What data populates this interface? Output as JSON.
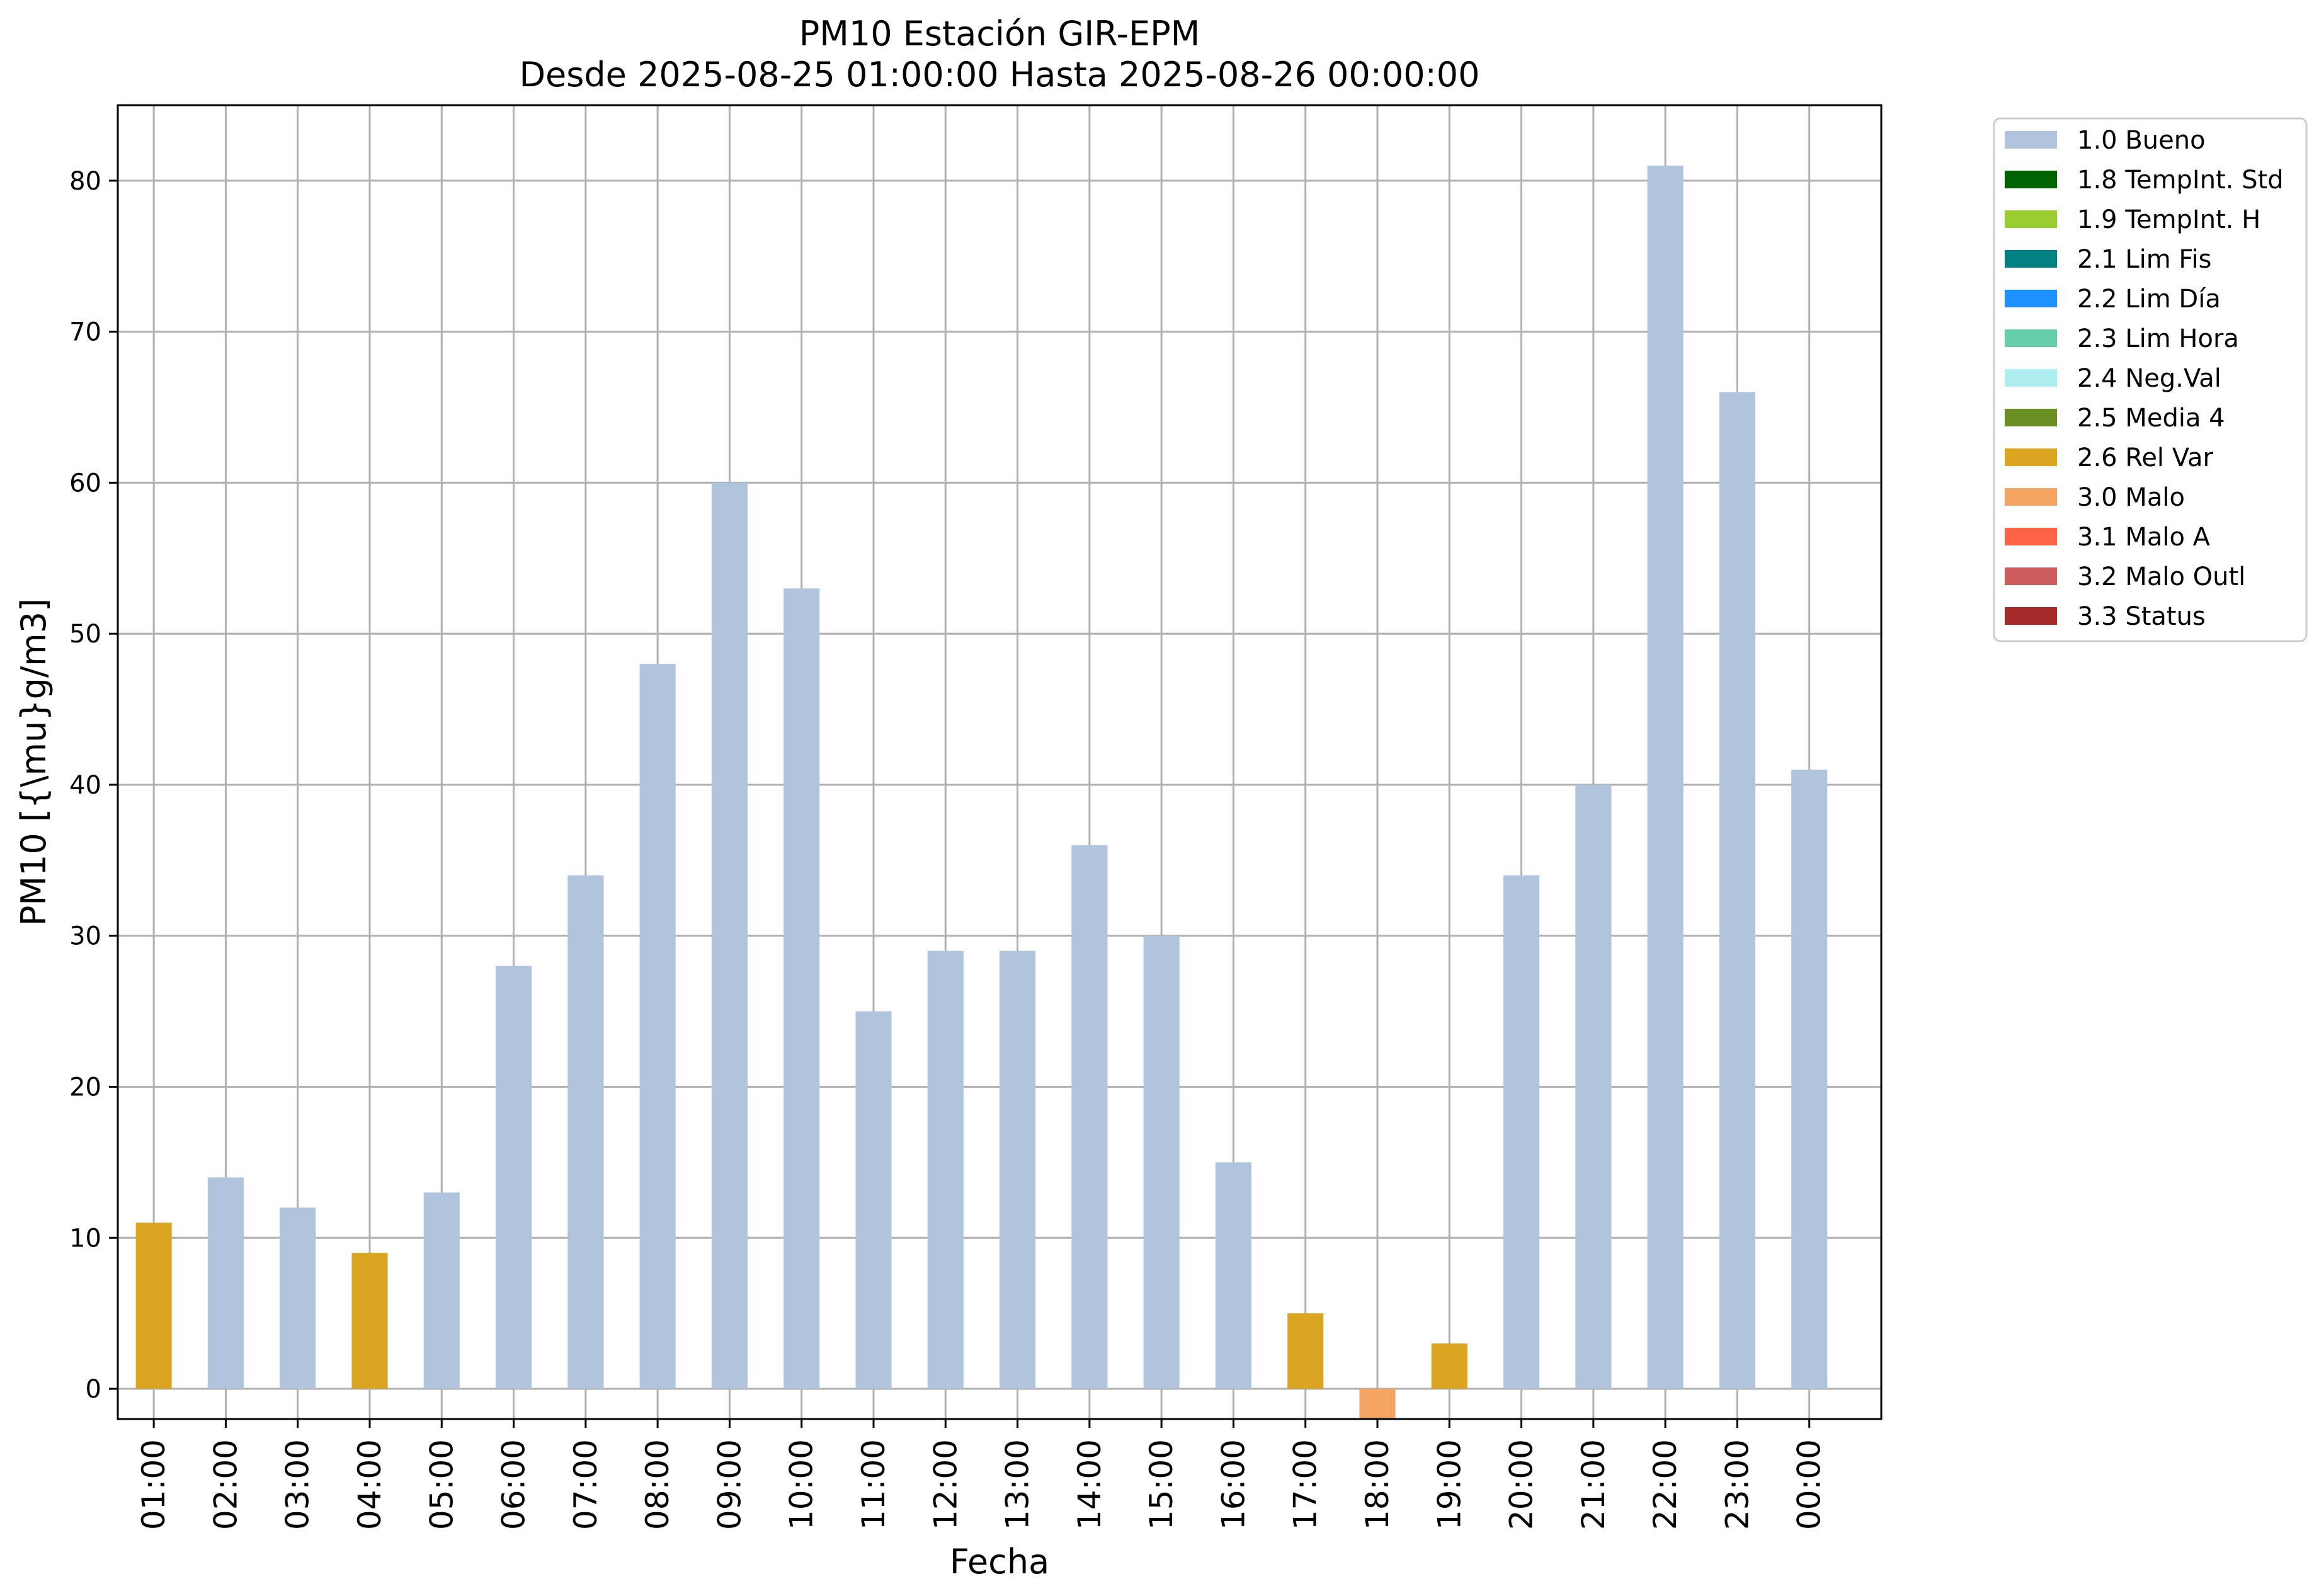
{
  "chart_data": {
    "type": "bar",
    "title": "PM10 Estación GIR-EPM",
    "subtitle": "Desde 2025-08-25 01:00:00 Hasta 2025-08-26 00:00:00",
    "xlabel": "Fecha",
    "ylabel": "PM10 [{\\mu}g/m3]",
    "ylim": [
      -2,
      85
    ],
    "yticks": [
      0,
      10,
      20,
      30,
      40,
      50,
      60,
      70,
      80
    ],
    "grid": true,
    "legend_position": "outside-top-right",
    "categories": [
      "01:00",
      "02:00",
      "03:00",
      "04:00",
      "05:00",
      "06:00",
      "07:00",
      "08:00",
      "09:00",
      "10:00",
      "11:00",
      "12:00",
      "13:00",
      "14:00",
      "15:00",
      "16:00",
      "17:00",
      "18:00",
      "19:00",
      "20:00",
      "21:00",
      "22:00",
      "23:00",
      "00:00"
    ],
    "values": [
      11,
      14,
      12,
      9,
      13,
      28,
      34,
      48,
      60,
      53,
      25,
      29,
      29,
      36,
      30,
      15,
      5,
      -2,
      3,
      34,
      40,
      81,
      66,
      41
    ],
    "flags": [
      "2.6 Rel Var",
      "1.0 Bueno",
      "1.0 Bueno",
      "2.6 Rel Var",
      "1.0 Bueno",
      "1.0 Bueno",
      "1.0 Bueno",
      "1.0 Bueno",
      "1.0 Bueno",
      "1.0 Bueno",
      "1.0 Bueno",
      "1.0 Bueno",
      "1.0 Bueno",
      "1.0 Bueno",
      "1.0 Bueno",
      "1.0 Bueno",
      "2.6 Rel Var",
      "3.0 Malo",
      "2.6 Rel Var",
      "1.0 Bueno",
      "1.0 Bueno",
      "1.0 Bueno",
      "1.0 Bueno",
      "1.0 Bueno"
    ],
    "legend": [
      {
        "label": "1.0 Bueno",
        "color": "#b0c4de"
      },
      {
        "label": "1.8 TempInt. Std",
        "color": "#006400"
      },
      {
        "label": "1.9 TempInt. H",
        "color": "#9acd32"
      },
      {
        "label": "2.1 Lim Fis",
        "color": "#008080"
      },
      {
        "label": "2.2 Lim Día",
        "color": "#1e90ff"
      },
      {
        "label": "2.3 Lim Hora",
        "color": "#66cdaa"
      },
      {
        "label": "2.4 Neg.Val",
        "color": "#afeeee"
      },
      {
        "label": "2.5 Media 4",
        "color": "#6b8e23"
      },
      {
        "label": "2.6 Rel Var",
        "color": "#daa520"
      },
      {
        "label": "3.0 Malo",
        "color": "#f4a460"
      },
      {
        "label": "3.1 Malo A",
        "color": "#ff6347"
      },
      {
        "label": "3.2 Malo Outl",
        "color": "#cd5c5c"
      },
      {
        "label": "3.3 Status",
        "color": "#a52a2a"
      }
    ]
  }
}
